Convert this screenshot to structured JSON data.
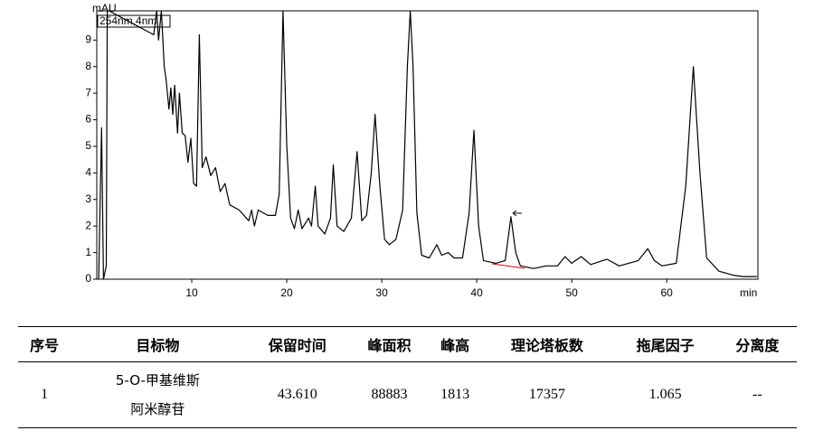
{
  "chart_data": {
    "type": "line",
    "y_label": "mAU",
    "x_label": "min",
    "annotation": "254nm,4nm",
    "x": [
      0.2,
      0.5,
      0.7,
      1.0,
      1.1,
      1.3,
      6.0,
      6.3,
      6.5,
      6.8,
      7.1,
      7.3,
      7.6,
      7.8,
      8.0,
      8.2,
      8.5,
      8.7,
      9.0,
      9.3,
      9.6,
      9.9,
      10.2,
      10.5,
      10.8,
      11.1,
      11.5,
      12.0,
      12.5,
      13.0,
      13.5,
      14.0,
      15.0,
      16.0,
      16.3,
      16.6,
      17.0,
      18.0,
      18.8,
      19.2,
      19.6,
      20.0,
      20.4,
      20.8,
      21.2,
      21.6,
      22.3,
      22.6,
      23.0,
      23.3,
      24.0,
      24.6,
      24.9,
      25.3,
      26.0,
      26.8,
      27.4,
      27.9,
      28.4,
      28.9,
      29.3,
      29.8,
      30.3,
      30.8,
      31.5,
      32.2,
      32.7,
      33.0,
      33.3,
      33.7,
      34.2,
      35.0,
      35.8,
      36.3,
      37.0,
      37.6,
      38.5,
      39.2,
      39.7,
      40.2,
      40.7,
      42.0,
      43.0,
      43.6,
      44.1,
      44.6,
      46.0,
      47.3,
      48.5,
      49.3,
      50.0,
      51.0,
      52.0,
      53.7,
      55.0,
      57.0,
      58.0,
      58.7,
      59.5,
      61.0,
      62.0,
      62.8,
      63.5,
      64.2,
      65.5,
      67.0,
      68.0,
      69.5
    ],
    "series": [
      {
        "color": "#000000",
        "values": [
          0,
          5.7,
          0,
          0.5,
          10.1,
          10.1,
          9.2,
          10.1,
          9.0,
          10.1,
          8.0,
          7.5,
          6.4,
          7.2,
          6.2,
          7.3,
          5.5,
          7.0,
          5.5,
          5.4,
          4.4,
          5.3,
          3.6,
          3.5,
          9.2,
          4.2,
          4.6,
          3.9,
          4.2,
          3.3,
          3.6,
          2.8,
          2.6,
          2.2,
          2.6,
          2.0,
          2.6,
          2.4,
          2.4,
          3.2,
          10.1,
          5.0,
          2.3,
          1.9,
          2.6,
          1.9,
          2.3,
          2.0,
          3.5,
          2.0,
          1.7,
          2.3,
          4.3,
          2.0,
          1.8,
          2.3,
          4.8,
          2.2,
          2.4,
          4.0,
          6.2,
          3.5,
          1.5,
          1.3,
          1.5,
          2.6,
          8.0,
          10.1,
          8.0,
          2.5,
          0.9,
          0.8,
          1.3,
          0.9,
          1.0,
          0.8,
          0.8,
          2.5,
          5.6,
          2.0,
          0.7,
          0.6,
          0.7,
          2.35,
          1.0,
          0.5,
          0.4,
          0.5,
          0.5,
          0.85,
          0.6,
          0.85,
          0.55,
          0.75,
          0.5,
          0.7,
          1.15,
          0.7,
          0.5,
          0.6,
          3.5,
          8.0,
          4.0,
          0.8,
          0.3,
          0.15,
          0.1,
          0.1
        ]
      }
    ],
    "xlim": [
      0,
      69.6
    ],
    "ylim": [
      0,
      10.1
    ],
    "xticks": [
      10,
      20,
      30,
      40,
      50,
      60
    ],
    "yticks": [
      0,
      1,
      2,
      3,
      4,
      5,
      6,
      7,
      8,
      9
    ]
  },
  "table": {
    "headers": [
      "序号",
      "目标物",
      "保留时间",
      "峰面积",
      "峰高",
      "理论塔板数",
      "拖尾因子",
      "分离度"
    ],
    "rows": [
      [
        "1",
        "5-O-甲基维斯阿米醇苷",
        "43.610",
        "88883",
        "1813",
        "17357",
        "1.065",
        "--"
      ]
    ]
  }
}
